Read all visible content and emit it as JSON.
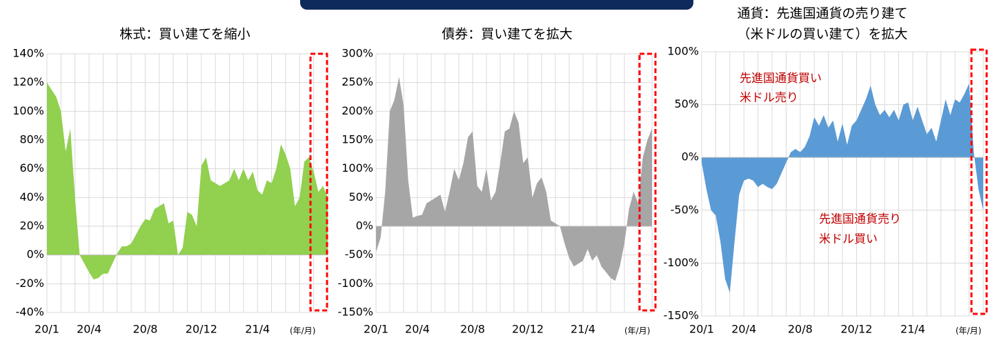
{
  "chart_data": [
    {
      "type": "area",
      "title": [
        "株式：買い建てを縮小"
      ],
      "color": "#92d050",
      "categories": [
        "20/1",
        null,
        null,
        null,
        null,
        null,
        null,
        null,
        null,
        "20/4",
        null,
        null,
        null,
        null,
        null,
        null,
        null,
        null,
        null,
        null,
        null,
        "20/8",
        null,
        null,
        null,
        null,
        null,
        null,
        null,
        null,
        null,
        null,
        null,
        "20/12",
        null,
        null,
        null,
        null,
        null,
        null,
        null,
        null,
        null,
        null,
        null,
        "21/4",
        null,
        null,
        null,
        null,
        null,
        null,
        null,
        null,
        null,
        null,
        null,
        null,
        null,
        null,
        null
      ],
      "values": [
        120,
        115,
        110,
        100,
        72,
        88,
        40,
        0,
        -6,
        -12,
        -17,
        -16,
        -13,
        -13,
        -6,
        1,
        6,
        6,
        8,
        14,
        20,
        25,
        24,
        32,
        34,
        36,
        22,
        24,
        0,
        5,
        30,
        28,
        20,
        62,
        68,
        52,
        50,
        48,
        50,
        52,
        60,
        52,
        60,
        52,
        58,
        45,
        42,
        52,
        50,
        60,
        77,
        70,
        60,
        34,
        40,
        65,
        68,
        58,
        44,
        48,
        40
      ],
      "ylim": [
        -40,
        140
      ],
      "yticks": [
        {
          "value": -40,
          "label": "-40%"
        },
        {
          "value": -20,
          "label": "-20%"
        },
        {
          "value": 0,
          "label": "0%"
        },
        {
          "value": 20,
          "label": "20%"
        },
        {
          "value": 40,
          "label": "40%"
        },
        {
          "value": 60,
          "label": "60%"
        },
        {
          "value": 80,
          "label": "80%"
        },
        {
          "value": 100,
          "label": "100%"
        },
        {
          "value": 120,
          "label": "120%"
        },
        {
          "value": 140,
          "label": "140%"
        }
      ],
      "unit_label": "(年/月)"
    },
    {
      "type": "area",
      "title": [
        "債券：買い建てを拡大"
      ],
      "color": "#a6a6a6",
      "categories": [
        "20/1",
        null,
        null,
        null,
        null,
        null,
        null,
        null,
        null,
        "20/4",
        null,
        null,
        null,
        null,
        null,
        null,
        null,
        null,
        null,
        null,
        null,
        "20/8",
        null,
        null,
        null,
        null,
        null,
        null,
        null,
        null,
        null,
        null,
        null,
        "20/12",
        null,
        null,
        null,
        null,
        null,
        null,
        null,
        null,
        null,
        null,
        null,
        "21/4",
        null,
        null,
        null,
        null,
        null,
        null,
        null,
        null,
        null,
        null,
        null,
        null,
        null,
        null,
        null
      ],
      "values": [
        -45,
        -20,
        60,
        200,
        220,
        260,
        210,
        80,
        15,
        18,
        20,
        40,
        45,
        50,
        55,
        25,
        60,
        100,
        80,
        110,
        155,
        165,
        70,
        60,
        100,
        45,
        60,
        110,
        165,
        170,
        200,
        180,
        110,
        120,
        50,
        75,
        85,
        60,
        10,
        5,
        0,
        -30,
        -55,
        -70,
        -65,
        -60,
        -40,
        -60,
        -50,
        -70,
        -80,
        -90,
        -95,
        -70,
        -30,
        30,
        60,
        40,
        120,
        150,
        170
      ],
      "ylim": [
        -150,
        300
      ],
      "yticks": [
        {
          "value": -150,
          "label": "-150%"
        },
        {
          "value": -100,
          "label": "-100%"
        },
        {
          "value": -50,
          "label": "-50%"
        },
        {
          "value": 0,
          "label": "0%"
        },
        {
          "value": 50,
          "label": "50%"
        },
        {
          "value": 100,
          "label": "100%"
        },
        {
          "value": 150,
          "label": "150%"
        },
        {
          "value": 200,
          "label": "200%"
        },
        {
          "value": 250,
          "label": "250%"
        },
        {
          "value": 300,
          "label": "300%"
        }
      ],
      "unit_label": "(年/月)"
    },
    {
      "type": "area",
      "title": [
        "通貨：先進国通貨の売り建て",
        "（米ドルの買い建て）を拡大"
      ],
      "color": "#5b9bd5",
      "categories": [
        "20/1",
        null,
        null,
        null,
        null,
        null,
        null,
        null,
        null,
        "20/4",
        null,
        null,
        null,
        null,
        null,
        null,
        null,
        null,
        null,
        null,
        null,
        "20/8",
        null,
        null,
        null,
        null,
        null,
        null,
        null,
        null,
        null,
        null,
        null,
        "20/12",
        null,
        null,
        null,
        null,
        null,
        null,
        null,
        null,
        null,
        null,
        null,
        "21/4",
        null,
        null,
        null,
        null,
        null,
        null,
        null,
        null,
        null,
        null,
        null,
        null,
        null,
        null,
        null
      ],
      "values": [
        -5,
        -30,
        -50,
        -55,
        -80,
        -115,
        -128,
        -80,
        -35,
        -22,
        -20,
        -22,
        -28,
        -25,
        -28,
        -30,
        -25,
        -15,
        -5,
        5,
        8,
        5,
        10,
        20,
        38,
        30,
        40,
        28,
        35,
        15,
        32,
        12,
        30,
        35,
        45,
        55,
        68,
        50,
        40,
        45,
        38,
        45,
        35,
        50,
        52,
        35,
        48,
        35,
        22,
        28,
        15,
        35,
        55,
        40,
        55,
        52,
        60,
        70,
        5,
        -30,
        -50
      ],
      "ylim": [
        -150,
        100
      ],
      "yticks": [
        {
          "value": -150,
          "label": "-150%"
        },
        {
          "value": -100,
          "label": "-100%"
        },
        {
          "value": -50,
          "label": "-50%"
        },
        {
          "value": 0,
          "label": "0%"
        },
        {
          "value": 50,
          "label": "50%"
        },
        {
          "value": 100,
          "label": "100%"
        }
      ],
      "unit_label": "(年/月)",
      "annotations": [
        "先進国通貨買い",
        "米ドル売り",
        "先進国通貨売り",
        "米ドル買い"
      ]
    }
  ]
}
